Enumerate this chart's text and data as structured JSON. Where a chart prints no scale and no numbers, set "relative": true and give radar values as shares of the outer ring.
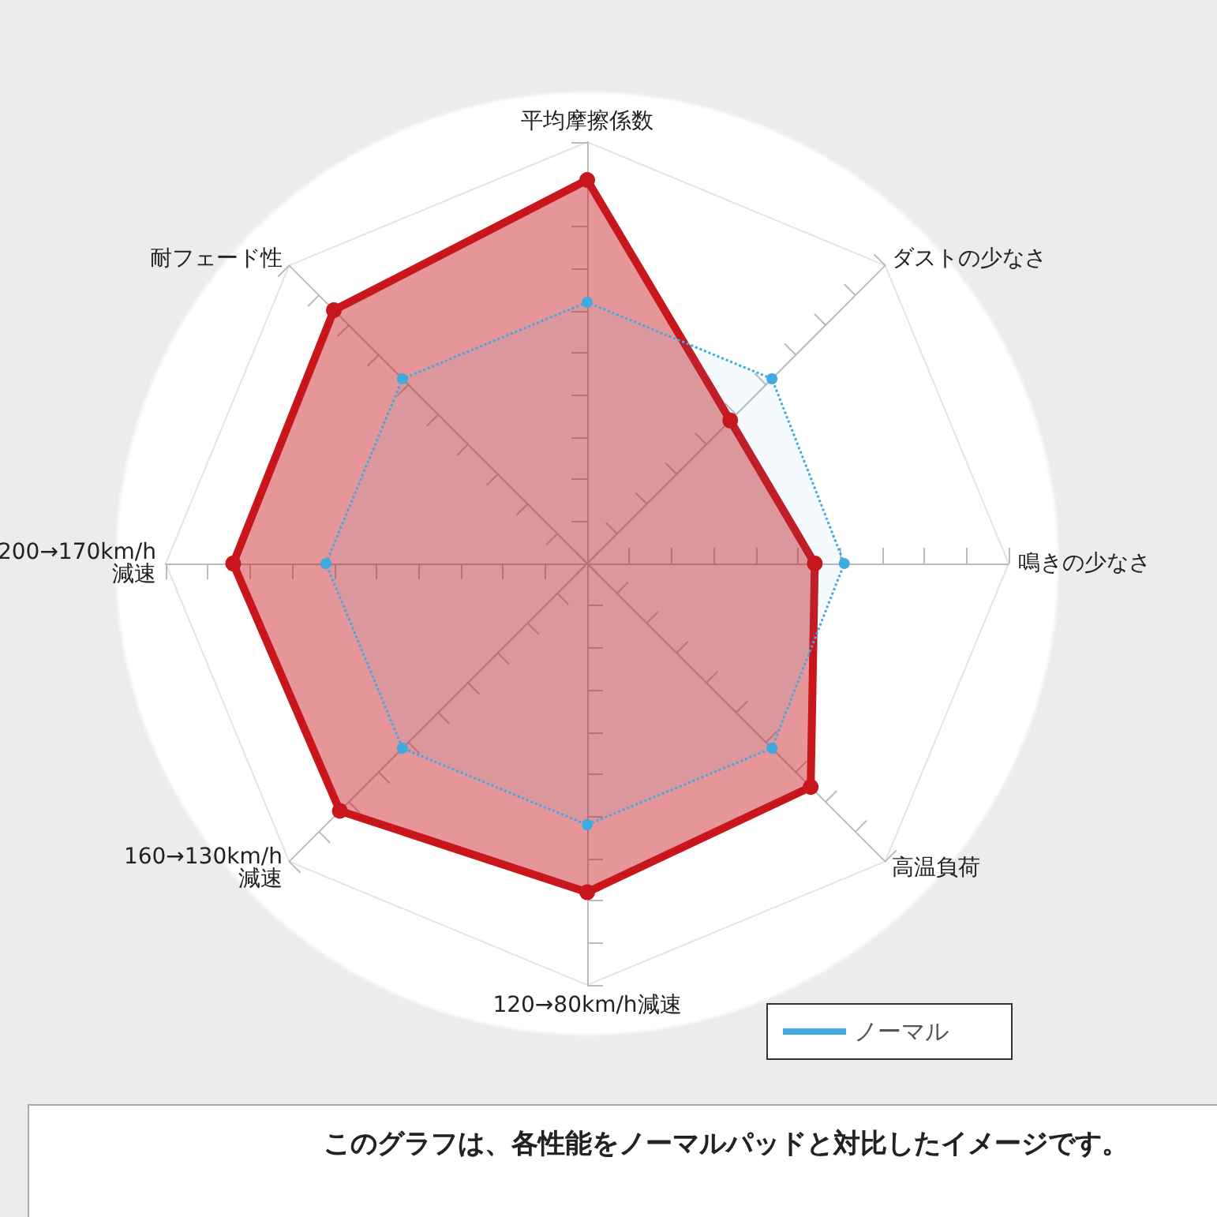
{
  "chart_data": {
    "type": "radar",
    "relative": true,
    "categories": [
      "平均摩擦係数",
      "ダストの少なさ",
      "鳴きの少なさ",
      "高温負荷",
      "120→80km/h減速",
      "160→130km/h\n減速",
      "200→170km/h\n減速",
      "耐フェード性"
    ],
    "series": [
      {
        "color": "#c8161d",
        "values": [
          0.91,
          0.48,
          0.54,
          0.75,
          0.78,
          0.83,
          0.84,
          0.85
        ],
        "line_style": "solid"
      },
      {
        "name": "ノーマル",
        "color": "#3fa9e0",
        "values": [
          0.62,
          0.62,
          0.61,
          0.62,
          0.62,
          0.62,
          0.62,
          0.62
        ],
        "line_style": "dotted"
      }
    ],
    "marker": "circle",
    "legend": "bottom right",
    "annotations": [
      "このグラフは、各性能をノーマルパッドと対比したイメージです。"
    ]
  }
}
